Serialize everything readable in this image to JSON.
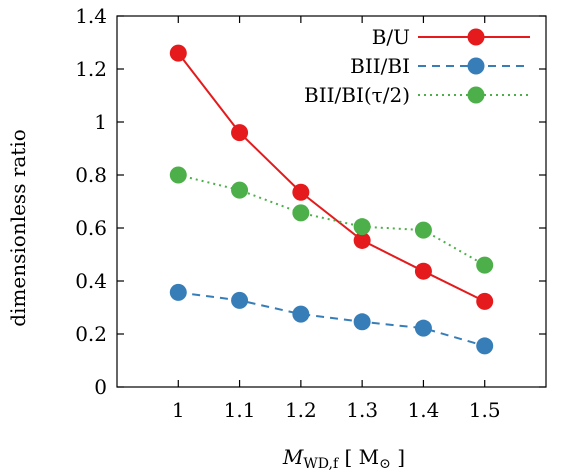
{
  "chart_data": {
    "type": "line",
    "x": [
      1.0,
      1.1,
      1.2,
      1.3,
      1.4,
      1.5
    ],
    "x_tick_labels": [
      "1",
      "1.1",
      "1.2",
      "1.3",
      "1.4",
      "1.5"
    ],
    "y_tick_labels": [
      "0",
      "0.2",
      "0.4",
      "0.6",
      "0.8",
      "1",
      "1.2",
      "1.4"
    ],
    "xlim": [
      0.9,
      1.6
    ],
    "ylim": [
      0,
      1.4
    ],
    "ylabel": "dimensionless ratio",
    "xlabel": {
      "main": "M",
      "sub": "WD,f",
      "unit_open": "[ M",
      "unit_sub": "⊙",
      "unit_close": "]"
    },
    "legend_position": "top-right",
    "series": [
      {
        "name": "B/U",
        "values": [
          1.26,
          0.96,
          0.735,
          0.553,
          0.437,
          0.323
        ],
        "color": "#e41a1c",
        "line_style": "solid"
      },
      {
        "name": "BII/BI",
        "values": [
          0.357,
          0.327,
          0.275,
          0.246,
          0.222,
          0.155
        ],
        "color": "#377eb8",
        "line_style": "dashed"
      },
      {
        "name": "BII/BI(τ/2)",
        "values": [
          0.8,
          0.743,
          0.657,
          0.605,
          0.592,
          0.46
        ],
        "color": "#4daf4a",
        "line_style": "dotted"
      }
    ]
  }
}
